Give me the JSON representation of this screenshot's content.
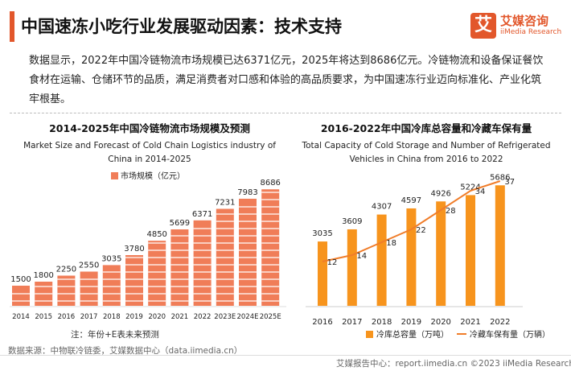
{
  "header": {
    "title": "中国速冻小吃行业发展驱动因素：技术支持",
    "logo_icon": "艾",
    "logo_cn": "艾媒咨询",
    "logo_en": "iiMedia Research",
    "accent_color": "#e2572b"
  },
  "description": "数据显示，2022年中国冷链物流市场规模已达6371亿元，2025年将达到8686亿元。冷链物流和设备保证餐饮食材在运输、仓储环节的品质，满足消费者对口感和体验的高品质要求，为中国速冻行业迈向标准化、产业化筑牢根基。",
  "chart_data": [
    {
      "type": "bar",
      "title": "2014-2025年中国冷链物流市场规模及预测",
      "subtitle": "Market Size and Forecast of Cold Chain Logistics industry of China in 2014-2025",
      "legend": "市场规模（亿元）",
      "legend_position": "top-center",
      "categories": [
        "2014",
        "2015",
        "2016",
        "2017",
        "2018",
        "2019",
        "2020",
        "2021",
        "2022",
        "2023E",
        "2024E",
        "2025E"
      ],
      "series": [
        {
          "name": "市场规模（亿元）",
          "values": [
            1500,
            1800,
            2250,
            2550,
            3035,
            3780,
            4850,
            5699,
            6371,
            7231,
            7983,
            8686
          ]
        }
      ],
      "ylim": [
        0,
        9000
      ],
      "color": "#f07d58",
      "grid": false,
      "note": "注：年份+E表未来预测"
    },
    {
      "type": "bar+line",
      "title": "2016-2022年中国冷库总容量和冷藏车保有量",
      "subtitle": "Total Capacity of Cold Storage and Number of Refrigerated Vehicles in China from 2016 to 2022",
      "categories": [
        "2016",
        "2017",
        "2018",
        "2019",
        "2020",
        "2021",
        "2022"
      ],
      "series": [
        {
          "name": "冷库总容量（万吨）",
          "type": "bar",
          "values": [
            3035,
            3609,
            4307,
            4597,
            4926,
            5224,
            5686
          ],
          "color": "#f7941d"
        },
        {
          "name": "冷藏车保有量（万辆）",
          "type": "line",
          "values": [
            12,
            14,
            18,
            22,
            28,
            34,
            37
          ],
          "color": "#f07d2a"
        }
      ],
      "ylim_bar": [
        0,
        6000
      ],
      "ylim_line": [
        0,
        40
      ],
      "legend_position": "bottom",
      "grid": false
    }
  ],
  "footer": {
    "source": "数据来源：中物联冷链委，艾媒数据中心（data.iimedia.cn）",
    "right": "艾媒报告中心：report.iimedia.cn    ©2023  iiMedia Research  Inc"
  }
}
